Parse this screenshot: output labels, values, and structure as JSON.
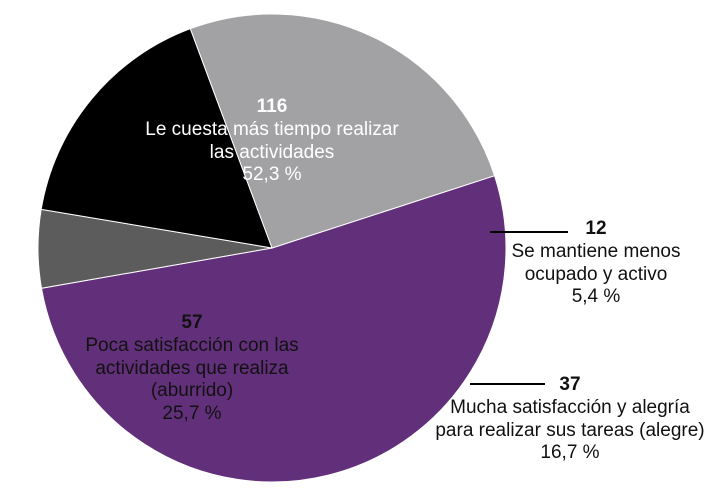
{
  "chart_data": {
    "type": "pie",
    "slices": [
      {
        "count": "116",
        "label_lines": [
          "Le cuesta más tiempo realizar",
          "las actividades"
        ],
        "percent_text": "52,3 %",
        "value": 52.3,
        "color": "#62307a"
      },
      {
        "count": "12",
        "label_lines": [
          "Se mantiene menos",
          "ocupado y activo"
        ],
        "percent_text": "5,4 %",
        "value": 5.4,
        "color": "#5c5c5c"
      },
      {
        "count": "37",
        "label_lines": [
          "Mucha satisfacción y alegría",
          "para realizar sus tareas (alegre)"
        ],
        "percent_text": "16,7 %",
        "value": 16.7,
        "color": "#000000"
      },
      {
        "count": "57",
        "label_lines": [
          "Poca satisfacción con las",
          "actividades que realiza",
          "(aburrido)"
        ],
        "percent_text": "25,7 %",
        "value": 25.7,
        "color": "#a2a2a5"
      }
    ]
  }
}
